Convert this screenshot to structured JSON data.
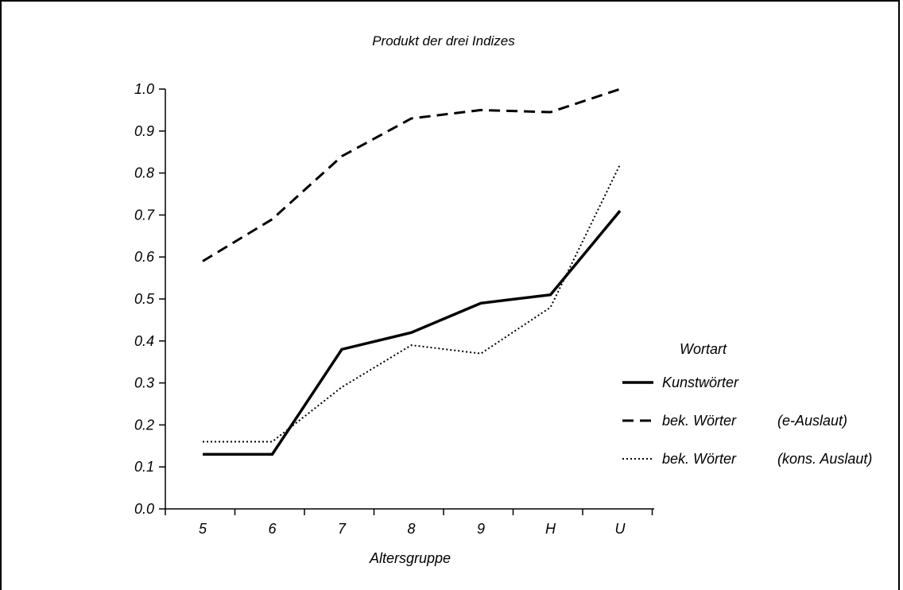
{
  "chart_data": {
    "type": "line",
    "title": "Produkt der drei Indizes",
    "xlabel": "Altersgruppe",
    "ylabel": "",
    "categories": [
      "5",
      "6",
      "7",
      "8",
      "9",
      "H",
      "U"
    ],
    "ylim": [
      0.0,
      1.0
    ],
    "yticks": [
      "0.0",
      "0.1",
      "0.2",
      "0.3",
      "0.4",
      "0.5",
      "0.6",
      "0.7",
      "0.8",
      "0.9",
      "1.0"
    ],
    "grid": false,
    "legend_placement": "right",
    "legend_title": "Wortart",
    "series": [
      {
        "name": "Kunstwörter",
        "note": "",
        "style": "solid",
        "color": "#000000",
        "values": [
          0.13,
          0.13,
          0.38,
          0.42,
          0.49,
          0.51,
          0.71
        ]
      },
      {
        "name": "bek. Wörter",
        "note": "(e-Auslaut)",
        "style": "dashed",
        "color": "#000000",
        "values": [
          0.59,
          0.69,
          0.84,
          0.93,
          0.95,
          0.945,
          1.0
        ]
      },
      {
        "name": "bek. Wörter",
        "note": "(kons. Auslaut)",
        "style": "dotted",
        "color": "#000000",
        "values": [
          0.16,
          0.16,
          0.29,
          0.39,
          0.37,
          0.48,
          0.82
        ]
      }
    ]
  }
}
